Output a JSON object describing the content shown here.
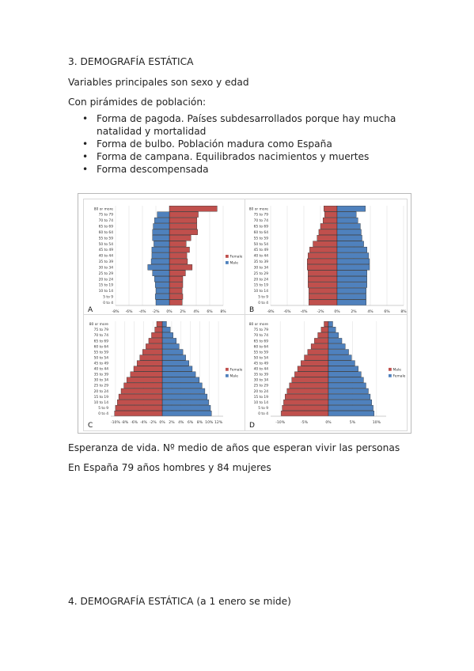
{
  "document": {
    "heading3": "3. DEMOGRAFÍA ESTÁTICA",
    "para1": "Variables principales son sexo y edad",
    "para2": "Con pirámides de población:",
    "bullets": [
      {
        "symbol": "•",
        "text": "Forma de pagoda. Países subdesarrollados porque hay mucha natalidad y mortalidad"
      },
      {
        "symbol": "•",
        "text": "Forma de bulbo. Población madura como España"
      },
      {
        "symbol": "•",
        "text": "Forma de campana. Equilibrados nacimientos y muertes"
      },
      {
        "symbol": "•",
        "text": "Forma descompensada"
      }
    ],
    "para3": "Esperanza de vida. Nº medio de años que esperan vivir las personas",
    "para4": "En España 79 años hombres y 84 mujeres",
    "heading4": "4. DEMOGRAFÍA ESTÁTICA (a 1 enero se mide)"
  },
  "chart_data": [
    {
      "type": "bar",
      "panel_label": "A",
      "categories": [
        "0 to 4",
        "5 to 9",
        "10 to 14",
        "15 to 19",
        "20 to 24",
        "25 to 29",
        "30 to 34",
        "35 to 39",
        "40 to 44",
        "45 to 49",
        "50 to 54",
        "55 to 59",
        "60 to 64",
        "65 to 69",
        "70 to 74",
        "75 to 79",
        "80 or more"
      ],
      "xticks": [
        "-8%",
        "-6%",
        "-4%",
        "-2%",
        "0%",
        "2%",
        "4%",
        "6%",
        "8%"
      ],
      "xlim": [
        -8,
        8
      ],
      "legend_position": "right",
      "series": [
        {
          "name": "Female",
          "side": "right",
          "color": "#c0504d",
          "values": [
            1.9,
            2.0,
            1.9,
            2.0,
            2.0,
            2.4,
            3.4,
            2.7,
            2.6,
            3.0,
            2.5,
            3.2,
            4.2,
            4.1,
            4.1,
            4.3,
            7.1
          ]
        },
        {
          "name": "Male",
          "side": "left",
          "color": "#4f81bd",
          "values": [
            2.0,
            2.1,
            2.0,
            2.1,
            2.2,
            2.5,
            3.2,
            2.7,
            2.6,
            2.6,
            2.3,
            2.5,
            2.5,
            2.4,
            2.2,
            1.8,
            0.0
          ]
        }
      ]
    },
    {
      "type": "bar",
      "panel_label": "B",
      "categories": [
        "0 to 4",
        "5 to 9",
        "10 to 14",
        "15 to 19",
        "20 to 24",
        "25 to 29",
        "30 to 34",
        "35 to 39",
        "40 to 44",
        "45 to 49",
        "50 to 54",
        "55 to 59",
        "60 to 64",
        "65 to 69",
        "70 to 74",
        "75 to 79",
        "80 or more"
      ],
      "xticks": [
        "-8%",
        "-6%",
        "-4%",
        "-2%",
        "0%",
        "2%",
        "4%",
        "6%",
        "8%"
      ],
      "xlim": [
        -8,
        8
      ],
      "series": [
        {
          "name": "",
          "side": "left",
          "color": "#c0504d",
          "values": [
            3.4,
            3.4,
            3.4,
            3.5,
            3.5,
            3.5,
            3.6,
            3.6,
            3.5,
            3.3,
            2.9,
            2.4,
            2.2,
            2.0,
            1.7,
            1.5,
            1.6
          ]
        },
        {
          "name": "",
          "side": "right",
          "color": "#4f81bd",
          "values": [
            3.5,
            3.5,
            3.5,
            3.6,
            3.6,
            3.6,
            3.9,
            3.9,
            3.8,
            3.6,
            3.2,
            3.0,
            2.9,
            2.8,
            2.5,
            2.3,
            3.4
          ]
        }
      ]
    },
    {
      "type": "bar",
      "panel_label": "C",
      "categories": [
        "0 to 4",
        "5 to 9",
        "10 to 14",
        "15 to 19",
        "20 to 24",
        "25 to 29",
        "30 to 34",
        "35 to 39",
        "40 to 44",
        "45 to 49",
        "50 to 54",
        "55 to 59",
        "60 to 64",
        "65 to 69",
        "70 to 74",
        "75 to 79",
        "80 or more"
      ],
      "xticks": [
        "-10%",
        "-8%",
        "-6%",
        "-4%",
        "-2%",
        "0%",
        "2%",
        "4%",
        "6%",
        "8%",
        "10%",
        "12%"
      ],
      "xlim": [
        -11,
        13
      ],
      "legend_position": "right",
      "series": [
        {
          "name": "Female",
          "side": "left",
          "color": "#c0504d",
          "values": [
            10.2,
            10.0,
            9.6,
            9.3,
            8.8,
            8.2,
            7.6,
            6.8,
            6.1,
            5.4,
            4.8,
            4.2,
            3.5,
            2.9,
            2.3,
            1.6,
            1.2
          ]
        },
        {
          "name": "Male",
          "side": "right",
          "color": "#4f81bd",
          "values": [
            10.5,
            10.3,
            9.9,
            9.6,
            9.1,
            8.5,
            7.9,
            7.1,
            6.4,
            5.7,
            5.0,
            4.4,
            3.6,
            3.0,
            2.3,
            1.7,
            0.9
          ]
        }
      ]
    },
    {
      "type": "bar",
      "panel_label": "D",
      "categories": [
        "0 to 4",
        "5 to 9",
        "10 to 14",
        "15 to 19",
        "20 to 24",
        "25 to 29",
        "30 to 34",
        "35 to 39",
        "40 to 44",
        "45 to 49",
        "50 to 54",
        "55 to 59",
        "60 to 64",
        "65 to 69",
        "70 to 74",
        "75 to 79",
        "80 or more"
      ],
      "xticks": [
        "-10%",
        "-5%",
        "0%",
        "5%",
        "10%"
      ],
      "xlim": [
        -12,
        12
      ],
      "legend_position": "right",
      "series": [
        {
          "name": "Male",
          "side": "left",
          "color": "#c0504d",
          "values": [
            9.8,
            9.6,
            9.3,
            9.0,
            8.6,
            8.1,
            7.6,
            7.0,
            6.4,
            5.7,
            5.0,
            4.3,
            3.6,
            2.9,
            2.2,
            1.5,
            0.9
          ]
        },
        {
          "name": "Female",
          "side": "right",
          "color": "#4f81bd",
          "values": [
            9.5,
            9.3,
            9.0,
            8.7,
            8.3,
            7.8,
            7.3,
            6.8,
            6.2,
            5.5,
            4.8,
            4.2,
            3.5,
            2.8,
            2.1,
            1.5,
            0.9
          ]
        }
      ]
    }
  ]
}
